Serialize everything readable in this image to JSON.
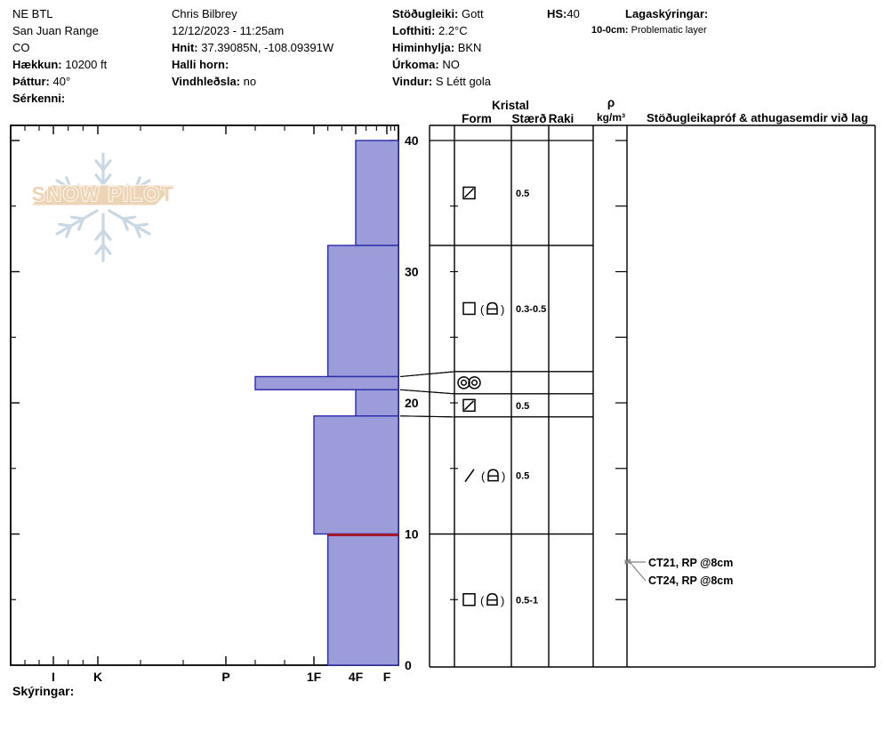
{
  "header": {
    "location": {
      "line1": "NE BTL",
      "line2": "San Juan Range",
      "line3": "CO",
      "elevation_label": "Hækkun:",
      "elevation_value": " 10200 ft",
      "aspect_label": "Þáttur:",
      "aspect_value": " 40°",
      "special_label": "Sérkenni:",
      "special_value": ""
    },
    "observer": {
      "name": "Chris Bilbrey",
      "datetime": "12/12/2023 - 11:25am",
      "coords_label": "Hnit:",
      "coords_value": " 37.39085N, -108.09391W",
      "slope_angle_label": "Halli horn:",
      "slope_angle_value": "",
      "wind_loading_label": "Vindhleðsla:",
      "wind_loading_value": " no"
    },
    "conditions": {
      "stability_label": "Stöðugleiki:",
      "stability_value": " Gott",
      "air_temp_label": "Lofthiti:",
      "air_temp_value": " 2.2°C",
      "sky_label": "Himinhylja:",
      "sky_value": " BKN",
      "precip_label": "Úrkoma:",
      "precip_value": " NO",
      "wind_label": "Vindur:",
      "wind_value": " S Létt gola"
    },
    "hs_label": "HS:",
    "hs_value": "40",
    "layer_notes": {
      "title": "Lagaskýringar:",
      "note_range_label": "10-0cm:",
      "note_text": " Problematic layer"
    }
  },
  "footer": {
    "legend_label": "Skýringar:"
  },
  "chart_data": {
    "type": "bar",
    "subtype": "snow-profile-hardness",
    "watermark": "SNOW PILOT",
    "depth_axis": {
      "unit": "cm",
      "min": 0,
      "max": 40,
      "major_ticks": [
        40,
        30,
        20,
        10,
        0
      ],
      "minor_step": 5
    },
    "hardness_axis": {
      "categories": [
        "I",
        "K",
        "P",
        "1F",
        "4F",
        "F"
      ]
    },
    "total_height_cm": 40,
    "layers": [
      {
        "top_cm": 40,
        "bottom_cm": 32,
        "hardness": "4F",
        "grain_form_primary": "square-slash",
        "grain_form_secondary": null,
        "grain_size_mm": "0.5"
      },
      {
        "top_cm": 32,
        "bottom_cm": 22,
        "hardness": "1F-",
        "grain_form_primary": "square",
        "grain_form_secondary": "cup",
        "grain_size_mm": "0.3-0.5"
      },
      {
        "top_cm": 22,
        "bottom_cm": 21,
        "hardness": "P-",
        "grain_form_primary": "double-circles",
        "grain_form_secondary": null,
        "grain_size_mm": ""
      },
      {
        "top_cm": 21,
        "bottom_cm": 19,
        "hardness": "4F",
        "grain_form_primary": "square-slash",
        "grain_form_secondary": null,
        "grain_size_mm": "0.5"
      },
      {
        "top_cm": 19,
        "bottom_cm": 10,
        "hardness": "1F",
        "grain_form_primary": "slash",
        "grain_form_secondary": "cup",
        "grain_size_mm": "0.5"
      },
      {
        "top_cm": 10,
        "bottom_cm": 0,
        "hardness": "1F-",
        "grain_form_primary": "square",
        "grain_form_secondary": "cup",
        "grain_size_mm": "0.5-1",
        "flagged_top": true
      }
    ],
    "flag_line_depth_cm": 10,
    "tests": [
      {
        "label": "CT21, RP @8cm",
        "depth_cm": 8
      },
      {
        "label": "CT24, RP @8cm",
        "depth_cm": 8
      }
    ],
    "columns": {
      "kristal": "Kristal",
      "form": "Form",
      "size": "Stærð",
      "moisture": "Raki",
      "density_rho": "ρ",
      "density_unit": "kg/m³",
      "stability": "Stöðugleikapróf & athugasemdir við lag"
    },
    "colors": {
      "layer_fill": "#9c9cdb",
      "layer_border": "#2b2ba8",
      "flag_line": "#a31a30",
      "watermark_band": "#edd2b3",
      "watermark_flake": "#c7d6e3",
      "annotation_arrow": "#8a8a8a"
    }
  }
}
